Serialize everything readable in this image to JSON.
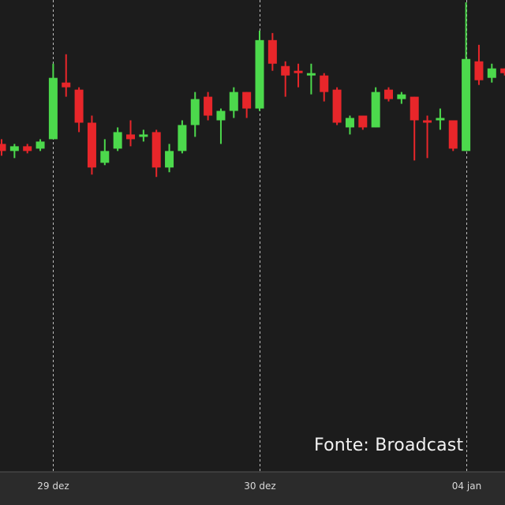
{
  "source_text": "Fonte: Broadcast",
  "colors": {
    "background": "#1c1c1c",
    "axis_band": "#2b2b2b",
    "up": "#4cd94c",
    "down": "#e8262a",
    "guide": "#bdbdbd",
    "tick_text": "#d8d8d8"
  },
  "chart_data": {
    "type": "candlestick",
    "title": "",
    "xlabel": "",
    "ylabel": "",
    "ylim": [
      0,
      100
    ],
    "grid": false,
    "session_markers": [
      {
        "label": "29 dez",
        "index": 4
      },
      {
        "label": "30 dez",
        "index": 20
      },
      {
        "label": "04 jan",
        "index": 36
      }
    ],
    "candles": [
      {
        "o": 69.5,
        "h": 70.5,
        "l": 67.0,
        "c": 68.0
      },
      {
        "o": 68.0,
        "h": 69.5,
        "l": 66.5,
        "c": 69.0
      },
      {
        "o": 69.0,
        "h": 69.5,
        "l": 67.5,
        "c": 68.0
      },
      {
        "o": 68.5,
        "h": 70.5,
        "l": 68.0,
        "c": 70.0
      },
      {
        "o": 70.5,
        "h": 86.5,
        "l": 70.5,
        "c": 83.5
      },
      {
        "o": 82.5,
        "h": 88.5,
        "l": 79.5,
        "c": 81.5
      },
      {
        "o": 81.0,
        "h": 81.5,
        "l": 72.0,
        "c": 74.0
      },
      {
        "o": 74.0,
        "h": 75.5,
        "l": 63.0,
        "c": 64.5
      },
      {
        "o": 65.5,
        "h": 70.5,
        "l": 65.0,
        "c": 68.0
      },
      {
        "o": 68.5,
        "h": 73.0,
        "l": 68.0,
        "c": 72.0
      },
      {
        "o": 71.5,
        "h": 74.5,
        "l": 69.0,
        "c": 70.5
      },
      {
        "o": 71.0,
        "h": 72.5,
        "l": 70.0,
        "c": 71.5
      },
      {
        "o": 72.0,
        "h": 72.5,
        "l": 62.5,
        "c": 64.5
      },
      {
        "o": 64.5,
        "h": 69.5,
        "l": 63.5,
        "c": 68.0
      },
      {
        "o": 68.0,
        "h": 74.5,
        "l": 67.5,
        "c": 73.5
      },
      {
        "o": 73.5,
        "h": 80.5,
        "l": 71.0,
        "c": 79.0
      },
      {
        "o": 79.5,
        "h": 80.5,
        "l": 74.5,
        "c": 75.5
      },
      {
        "o": 74.5,
        "h": 77.0,
        "l": 69.5,
        "c": 76.5
      },
      {
        "o": 76.5,
        "h": 81.5,
        "l": 75.0,
        "c": 80.5
      },
      {
        "o": 80.5,
        "h": 80.5,
        "l": 75.0,
        "c": 77.0
      },
      {
        "o": 77.0,
        "h": 93.5,
        "l": 76.5,
        "c": 91.5
      },
      {
        "o": 91.5,
        "h": 93.0,
        "l": 85.0,
        "c": 86.5
      },
      {
        "o": 86.0,
        "h": 87.0,
        "l": 79.5,
        "c": 84.0
      },
      {
        "o": 85.0,
        "h": 86.5,
        "l": 81.5,
        "c": 84.5
      },
      {
        "o": 84.0,
        "h": 86.5,
        "l": 80.0,
        "c": 84.5
      },
      {
        "o": 84.0,
        "h": 84.5,
        "l": 78.5,
        "c": 80.5
      },
      {
        "o": 81.0,
        "h": 81.5,
        "l": 73.5,
        "c": 74.0
      },
      {
        "o": 73.0,
        "h": 75.5,
        "l": 71.5,
        "c": 75.0
      },
      {
        "o": 75.5,
        "h": 75.5,
        "l": 72.5,
        "c": 73.0
      },
      {
        "o": 73.0,
        "h": 81.5,
        "l": 73.0,
        "c": 80.5
      },
      {
        "o": 81.0,
        "h": 81.5,
        "l": 78.5,
        "c": 79.0
      },
      {
        "o": 79.0,
        "h": 80.5,
        "l": 78.0,
        "c": 80.0
      },
      {
        "o": 79.5,
        "h": 79.5,
        "l": 66.0,
        "c": 74.5
      },
      {
        "o": 74.5,
        "h": 75.5,
        "l": 66.5,
        "c": 74.0
      },
      {
        "o": 74.5,
        "h": 77.0,
        "l": 72.5,
        "c": 75.0
      },
      {
        "o": 74.5,
        "h": 74.5,
        "l": 68.0,
        "c": 68.5
      },
      {
        "o": 68.0,
        "h": 99.5,
        "l": 68.0,
        "c": 87.5
      },
      {
        "o": 87.0,
        "h": 90.5,
        "l": 82.0,
        "c": 83.0
      },
      {
        "o": 83.5,
        "h": 86.5,
        "l": 82.5,
        "c": 85.5
      },
      {
        "o": 85.5,
        "h": 85.5,
        "l": 84.0,
        "c": 84.5
      }
    ]
  }
}
